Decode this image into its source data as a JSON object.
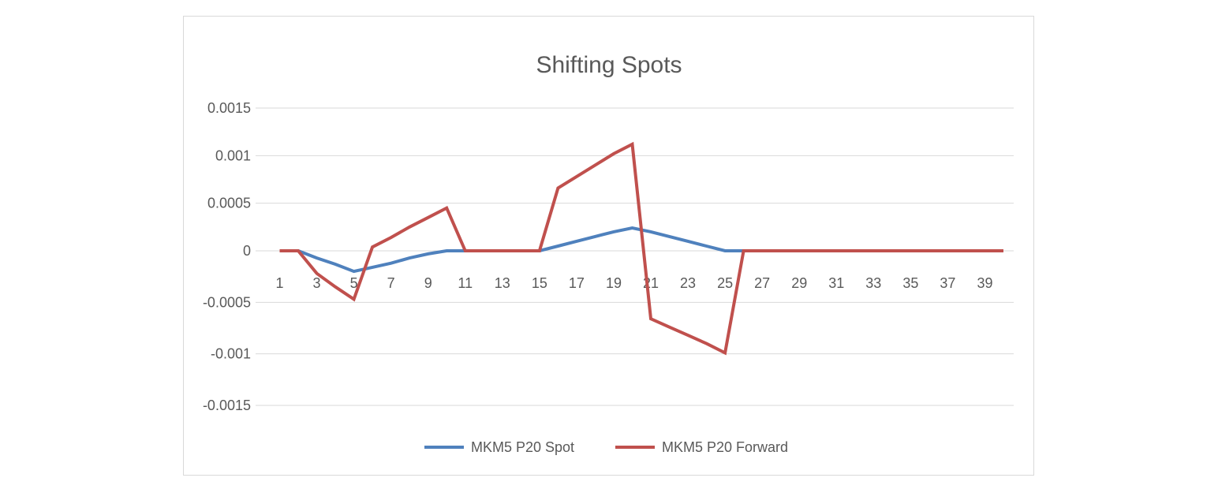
{
  "chart_data": {
    "type": "line",
    "title": "Shifting Spots",
    "xlabel": "",
    "ylabel": "",
    "x": [
      1,
      2,
      3,
      4,
      5,
      6,
      7,
      8,
      9,
      10,
      11,
      12,
      13,
      14,
      15,
      16,
      17,
      18,
      19,
      20,
      21,
      22,
      23,
      24,
      25,
      26,
      27,
      28,
      29,
      30,
      31,
      32,
      33,
      34,
      35,
      36,
      37,
      38,
      39,
      40
    ],
    "x_tick_labels": [
      "1",
      "3",
      "5",
      "7",
      "9",
      "11",
      "13",
      "15",
      "17",
      "19",
      "21",
      "23",
      "25",
      "27",
      "29",
      "31",
      "33",
      "35",
      "37",
      "39"
    ],
    "y_tick_labels": [
      "0.0015",
      "0.001",
      "0.0005",
      "0",
      "-0.0005",
      "-0.001",
      "-0.0015"
    ],
    "y_tick_values": [
      0.0015,
      0.001,
      0.0005,
      0,
      -0.0005,
      -0.001,
      -0.0015
    ],
    "ylim": [
      -0.0015,
      0.0015
    ],
    "grid": "horizontal",
    "legend_position": "bottom",
    "series": [
      {
        "name": "MKM5 P20 Spot",
        "color": "#4f81bd",
        "values": [
          0,
          0,
          -7e-05,
          -0.00013,
          -0.0002,
          -0.00016,
          -0.00012,
          -7e-05,
          -3e-05,
          0,
          0,
          0,
          0,
          0,
          0,
          5e-05,
          0.0001,
          0.00015,
          0.0002,
          0.00024,
          0.0002,
          0.00015,
          0.0001,
          5e-05,
          0,
          0,
          0,
          0,
          0,
          0,
          0,
          0,
          0,
          0,
          0,
          0,
          0,
          0,
          0,
          0
        ]
      },
      {
        "name": "MKM5 P20 Forward",
        "color": "#c0504d",
        "values": [
          0,
          0,
          -0.00022,
          -0.00035,
          -0.00047,
          4e-05,
          0.00014,
          0.00025,
          0.00035,
          0.00045,
          0,
          0,
          0,
          0,
          0,
          0.00066,
          0.00078,
          0.0009,
          0.00102,
          0.00112,
          -0.00066,
          -0.00074,
          -0.00082,
          -0.0009,
          -0.00099,
          0,
          0,
          0,
          0,
          0,
          0,
          0,
          0,
          0,
          0,
          0,
          0,
          0,
          0,
          0
        ]
      }
    ]
  }
}
